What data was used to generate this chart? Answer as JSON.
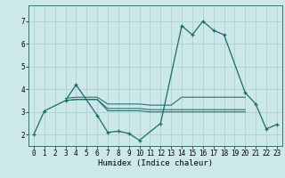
{
  "xlabel": "Humidex (Indice chaleur)",
  "background_color": "#cce8e8",
  "grid_color": "#aacccc",
  "line_color": "#1a6b6b",
  "xlim": [
    -0.5,
    23.5
  ],
  "ylim": [
    1.5,
    7.7
  ],
  "yticks": [
    2,
    3,
    4,
    5,
    6,
    7
  ],
  "xticks": [
    0,
    1,
    2,
    3,
    4,
    5,
    6,
    7,
    8,
    9,
    10,
    11,
    12,
    13,
    14,
    15,
    16,
    17,
    18,
    19,
    20,
    21,
    22,
    23
  ],
  "series_main": {
    "x": [
      0,
      1,
      3,
      4,
      6,
      7,
      8,
      9,
      10,
      12,
      14,
      15,
      16,
      17,
      18,
      20,
      21,
      22,
      23
    ],
    "y": [
      2.0,
      3.05,
      3.5,
      4.2,
      2.85,
      2.1,
      2.15,
      2.05,
      1.75,
      2.5,
      6.8,
      6.4,
      7.0,
      6.6,
      6.4,
      3.85,
      3.35,
      2.25,
      2.45
    ]
  },
  "series_flat1": {
    "x": [
      3,
      4,
      5,
      6,
      7,
      8,
      9,
      10,
      11,
      12,
      13,
      14,
      15,
      16,
      17,
      18,
      19,
      20
    ],
    "y": [
      3.5,
      3.55,
      3.55,
      3.55,
      3.15,
      3.15,
      3.15,
      3.15,
      3.1,
      3.1,
      3.1,
      3.1,
      3.1,
      3.1,
      3.1,
      3.1,
      3.1,
      3.1
    ]
  },
  "series_flat2": {
    "x": [
      3,
      4,
      5,
      6,
      7,
      8,
      9,
      10,
      11,
      12,
      13,
      14,
      15,
      16,
      17,
      18,
      19,
      20
    ],
    "y": [
      3.6,
      3.65,
      3.65,
      3.65,
      3.35,
      3.35,
      3.35,
      3.35,
      3.3,
      3.3,
      3.3,
      3.65,
      3.65,
      3.65,
      3.65,
      3.65,
      3.65,
      3.65
    ]
  },
  "series_flat3": {
    "x": [
      3,
      4,
      5,
      6,
      7,
      8,
      9,
      10,
      11,
      12,
      13,
      14,
      15,
      16,
      17,
      18,
      19,
      20
    ],
    "y": [
      3.5,
      3.55,
      3.55,
      3.55,
      3.05,
      3.05,
      3.05,
      3.05,
      3.0,
      3.0,
      3.0,
      3.0,
      3.0,
      3.0,
      3.0,
      3.0,
      3.0,
      3.0
    ]
  }
}
